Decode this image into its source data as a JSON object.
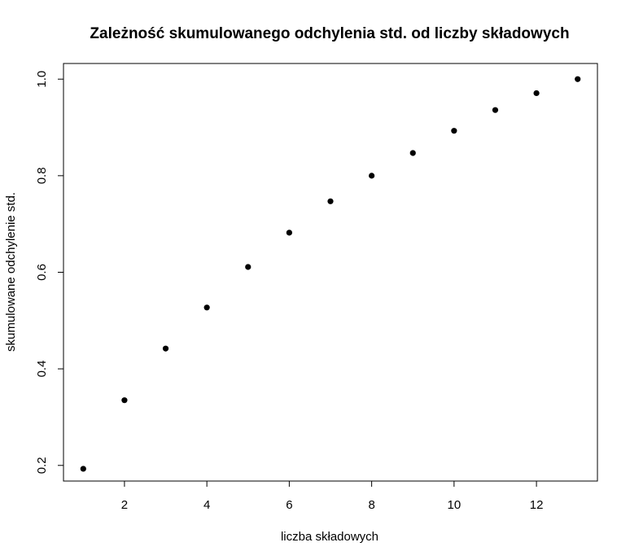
{
  "chart_data": {
    "type": "scatter",
    "title": "Zależność skumulowanego odchylenia std. od liczby składowych",
    "xlabel": "liczba składowych",
    "ylabel": "skumulowane odchylenie std.",
    "xlim": [
      0.52,
      13.48
    ],
    "ylim": [
      0.1676,
      1.0324
    ],
    "x_ticks": [
      2,
      4,
      6,
      8,
      10,
      12
    ],
    "x_tick_labels": [
      "2",
      "4",
      "6",
      "8",
      "10",
      "12"
    ],
    "y_ticks": [
      0.2,
      0.4,
      0.6,
      0.8,
      1.0
    ],
    "y_tick_labels": [
      "0.2",
      "0.4",
      "0.6",
      "0.8",
      "1.0"
    ],
    "grid": false,
    "legend": "none",
    "marker_color": "#000000",
    "points": [
      {
        "x": 1,
        "y": 0.193
      },
      {
        "x": 2,
        "y": 0.335
      },
      {
        "x": 3,
        "y": 0.442
      },
      {
        "x": 4,
        "y": 0.527
      },
      {
        "x": 5,
        "y": 0.611
      },
      {
        "x": 6,
        "y": 0.682
      },
      {
        "x": 7,
        "y": 0.747
      },
      {
        "x": 8,
        "y": 0.8
      },
      {
        "x": 9,
        "y": 0.847
      },
      {
        "x": 10,
        "y": 0.893
      },
      {
        "x": 11,
        "y": 0.936
      },
      {
        "x": 12,
        "y": 0.971
      },
      {
        "x": 13,
        "y": 1.0
      }
    ]
  }
}
